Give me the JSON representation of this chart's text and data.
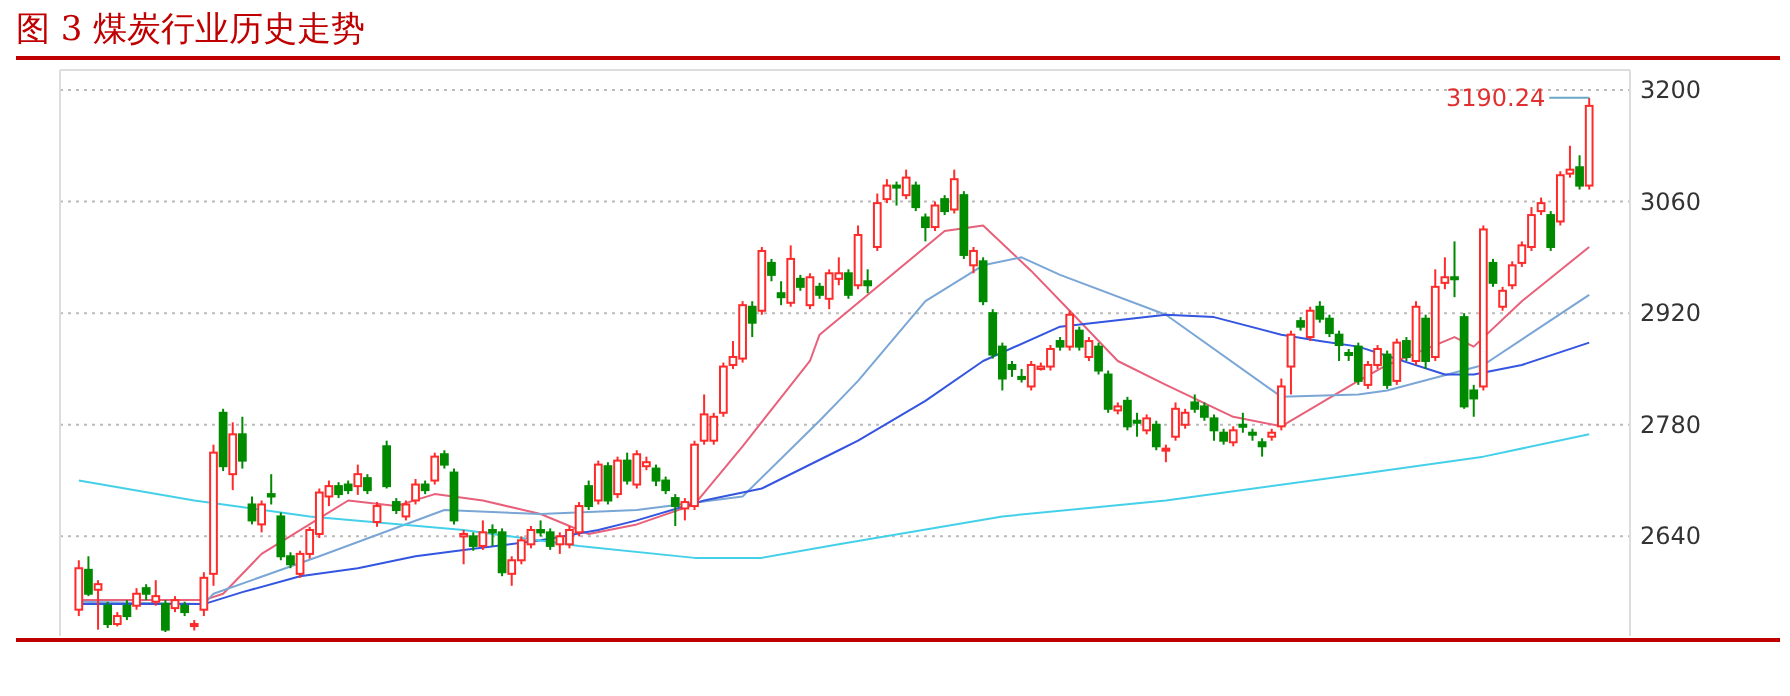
{
  "chart_data": {
    "type": "candlestick",
    "title": "图 3 煤炭行业历史走势",
    "categories": [
      null,
      null,
      null,
      null,
      null,
      null,
      null,
      null,
      null,
      null,
      null,
      null,
      null,
      null,
      null,
      null,
      null,
      null,
      null,
      null,
      null,
      null,
      null,
      null,
      null,
      null,
      null,
      null,
      null,
      null,
      null,
      null,
      null,
      null,
      null,
      null,
      null,
      null,
      null,
      null,
      null,
      null,
      null,
      null,
      null,
      null,
      null,
      null,
      null,
      null,
      null,
      null,
      null,
      null,
      null,
      null,
      null,
      null,
      null,
      null,
      null,
      null,
      null,
      null,
      null,
      null,
      null,
      null,
      null,
      null,
      null,
      null,
      null,
      null,
      null,
      null,
      null,
      null,
      null,
      null,
      null,
      null,
      null,
      null,
      null,
      null,
      null,
      null,
      null,
      null,
      null,
      null,
      null,
      null,
      null,
      null,
      null,
      null,
      null,
      null,
      null,
      null,
      null,
      null,
      null,
      null,
      null,
      null,
      null,
      null,
      null,
      null,
      null,
      null,
      null,
      null,
      null,
      null,
      null,
      null,
      null,
      null,
      null,
      null,
      null,
      null,
      null,
      null,
      null,
      null,
      null,
      null,
      null,
      null,
      null,
      null,
      null,
      null,
      null,
      null,
      null,
      null,
      null,
      null,
      null,
      null,
      null,
      null,
      null,
      null,
      null,
      null,
      null,
      null,
      null,
      null,
      null,
      null
    ],
    "ohlc": [
      [
        2548,
        2610,
        2540,
        2600
      ],
      [
        2598,
        2615,
        2565,
        2568
      ],
      [
        2573,
        2585,
        2523,
        2580
      ],
      [
        2553,
        2558,
        2525,
        2530
      ],
      [
        2530,
        2545,
        2527,
        2540
      ],
      [
        2553,
        2560,
        2535,
        2540
      ],
      [
        2553,
        2575,
        2548,
        2568
      ],
      [
        2575,
        2580,
        2560,
        2568
      ],
      [
        2558,
        2585,
        2553,
        2565
      ],
      [
        2555,
        2560,
        2520,
        2523
      ],
      [
        2550,
        2565,
        2545,
        2560
      ],
      [
        2553,
        2558,
        2540,
        2545
      ],
      [
        2528,
        2535,
        2522,
        2530
      ],
      [
        2548,
        2595,
        2540,
        2588
      ],
      [
        2593,
        2755,
        2578,
        2745
      ],
      [
        2795,
        2800,
        2722,
        2728
      ],
      [
        2718,
        2783,
        2698,
        2768
      ],
      [
        2768,
        2790,
        2725,
        2735
      ],
      [
        2680,
        2690,
        2655,
        2660
      ],
      [
        2655,
        2685,
        2645,
        2680
      ],
      [
        2693,
        2718,
        2680,
        2690
      ],
      [
        2665,
        2670,
        2610,
        2615
      ],
      [
        2615,
        2620,
        2600,
        2605
      ],
      [
        2593,
        2622,
        2588,
        2618
      ],
      [
        2618,
        2652,
        2612,
        2648
      ],
      [
        2643,
        2700,
        2638,
        2695
      ],
      [
        2690,
        2710,
        2678,
        2703
      ],
      [
        2703,
        2708,
        2688,
        2693
      ],
      [
        2705,
        2710,
        2693,
        2698
      ],
      [
        2703,
        2730,
        2692,
        2718
      ],
      [
        2713,
        2718,
        2693,
        2698
      ],
      [
        2658,
        2683,
        2652,
        2678
      ],
      [
        2753,
        2760,
        2700,
        2703
      ],
      [
        2683,
        2688,
        2668,
        2673
      ],
      [
        2665,
        2685,
        2660,
        2680
      ],
      [
        2685,
        2712,
        2680,
        2705
      ],
      [
        2705,
        2710,
        2693,
        2698
      ],
      [
        2710,
        2745,
        2705,
        2740
      ],
      [
        2743,
        2748,
        2725,
        2730
      ],
      [
        2720,
        2725,
        2655,
        2660
      ],
      [
        2640,
        2648,
        2605,
        2643
      ],
      [
        2640,
        2645,
        2622,
        2628
      ],
      [
        2628,
        2660,
        2623,
        2645
      ],
      [
        2648,
        2655,
        2628,
        2645
      ],
      [
        2645,
        2650,
        2590,
        2595
      ],
      [
        2593,
        2615,
        2578,
        2610
      ],
      [
        2610,
        2640,
        2605,
        2635
      ],
      [
        2630,
        2653,
        2625,
        2648
      ],
      [
        2648,
        2660,
        2640,
        2645
      ],
      [
        2645,
        2650,
        2623,
        2628
      ],
      [
        2630,
        2645,
        2618,
        2640
      ],
      [
        2630,
        2653,
        2625,
        2648
      ],
      [
        2645,
        2683,
        2640,
        2678
      ],
      [
        2703,
        2710,
        2673,
        2678
      ],
      [
        2685,
        2735,
        2680,
        2730
      ],
      [
        2728,
        2733,
        2680,
        2685
      ],
      [
        2693,
        2740,
        2688,
        2735
      ],
      [
        2735,
        2745,
        2705,
        2710
      ],
      [
        2705,
        2748,
        2700,
        2743
      ],
      [
        2728,
        2740,
        2723,
        2733
      ],
      [
        2725,
        2730,
        2703,
        2710
      ],
      [
        2710,
        2715,
        2693,
        2698
      ],
      [
        2688,
        2693,
        2653,
        2678
      ],
      [
        2675,
        2688,
        2660,
        2683
      ],
      [
        2678,
        2760,
        2673,
        2755
      ],
      [
        2760,
        2818,
        2755,
        2793
      ],
      [
        2760,
        2795,
        2755,
        2790
      ],
      [
        2795,
        2858,
        2790,
        2853
      ],
      [
        2855,
        2885,
        2850,
        2865
      ],
      [
        2863,
        2935,
        2858,
        2930
      ],
      [
        2928,
        2935,
        2890,
        2908
      ],
      [
        2923,
        3003,
        2918,
        2998
      ],
      [
        2983,
        2988,
        2960,
        2968
      ],
      [
        2945,
        2960,
        2930,
        2940
      ],
      [
        2933,
        3005,
        2928,
        2988
      ],
      [
        2963,
        2968,
        2948,
        2953
      ],
      [
        2930,
        2970,
        2925,
        2965
      ],
      [
        2953,
        2958,
        2938,
        2943
      ],
      [
        2938,
        2975,
        2925,
        2970
      ],
      [
        2963,
        2990,
        2955,
        2970
      ],
      [
        2970,
        2975,
        2938,
        2943
      ],
      [
        2955,
        3030,
        2950,
        3018
      ],
      [
        2960,
        2975,
        2945,
        2955
      ],
      [
        3003,
        3070,
        2998,
        3058
      ],
      [
        3063,
        3088,
        3058,
        3080
      ],
      [
        3080,
        3085,
        3055,
        3078
      ],
      [
        3068,
        3100,
        3063,
        3090
      ],
      [
        3080,
        3085,
        3048,
        3053
      ],
      [
        3040,
        3045,
        3010,
        3028
      ],
      [
        3028,
        3060,
        3023,
        3055
      ],
      [
        3063,
        3068,
        3043,
        3048
      ],
      [
        3050,
        3100,
        3045,
        3088
      ],
      [
        3068,
        3073,
        2988,
        2993
      ],
      [
        2980,
        3003,
        2970,
        2998
      ],
      [
        2985,
        2990,
        2930,
        2935
      ],
      [
        2920,
        2925,
        2863,
        2868
      ],
      [
        2878,
        2883,
        2823,
        2838
      ],
      [
        2855,
        2860,
        2840,
        2850
      ],
      [
        2840,
        2850,
        2833,
        2838
      ],
      [
        2828,
        2860,
        2823,
        2855
      ],
      [
        2850,
        2858,
        2848,
        2853
      ],
      [
        2853,
        2880,
        2848,
        2875
      ],
      [
        2885,
        2890,
        2873,
        2878
      ],
      [
        2878,
        2923,
        2873,
        2918
      ],
      [
        2898,
        2903,
        2873,
        2878
      ],
      [
        2865,
        2890,
        2860,
        2885
      ],
      [
        2878,
        2883,
        2843,
        2848
      ],
      [
        2843,
        2848,
        2795,
        2800
      ],
      [
        2798,
        2808,
        2793,
        2803
      ],
      [
        2810,
        2815,
        2773,
        2778
      ],
      [
        2785,
        2795,
        2765,
        2783
      ],
      [
        2773,
        2793,
        2768,
        2788
      ],
      [
        2780,
        2785,
        2748,
        2753
      ],
      [
        2748,
        2755,
        2733,
        2750
      ],
      [
        2765,
        2808,
        2760,
        2800
      ],
      [
        2780,
        2800,
        2775,
        2795
      ],
      [
        2808,
        2818,
        2795,
        2800
      ],
      [
        2803,
        2808,
        2785,
        2790
      ],
      [
        2788,
        2793,
        2760,
        2773
      ],
      [
        2770,
        2775,
        2755,
        2760
      ],
      [
        2758,
        2778,
        2753,
        2773
      ],
      [
        2780,
        2795,
        2770,
        2778
      ],
      [
        2770,
        2775,
        2760,
        2768
      ],
      [
        2758,
        2763,
        2740,
        2753
      ],
      [
        2765,
        2775,
        2760,
        2770
      ],
      [
        2778,
        2838,
        2773,
        2828
      ],
      [
        2853,
        2898,
        2818,
        2893
      ],
      [
        2910,
        2915,
        2898,
        2903
      ],
      [
        2890,
        2928,
        2885,
        2923
      ],
      [
        2928,
        2935,
        2908,
        2913
      ],
      [
        2913,
        2918,
        2890,
        2895
      ],
      [
        2893,
        2898,
        2860,
        2880
      ],
      [
        2870,
        2875,
        2860,
        2868
      ],
      [
        2878,
        2883,
        2830,
        2835
      ],
      [
        2830,
        2860,
        2825,
        2855
      ],
      [
        2855,
        2880,
        2850,
        2875
      ],
      [
        2868,
        2873,
        2825,
        2830
      ],
      [
        2835,
        2888,
        2830,
        2883
      ],
      [
        2885,
        2890,
        2860,
        2865
      ],
      [
        2860,
        2935,
        2855,
        2928
      ],
      [
        2913,
        2918,
        2850,
        2860
      ],
      [
        2865,
        2975,
        2860,
        2953
      ],
      [
        2958,
        2990,
        2950,
        2965
      ],
      [
        2965,
        3010,
        2940,
        2963
      ],
      [
        2915,
        2920,
        2800,
        2803
      ],
      [
        2823,
        2830,
        2790,
        2813
      ],
      [
        2828,
        3030,
        2823,
        3025
      ],
      [
        2983,
        2988,
        2953,
        2958
      ],
      [
        2928,
        2953,
        2923,
        2948
      ],
      [
        2955,
        2985,
        2950,
        2980
      ],
      [
        2983,
        3010,
        2978,
        3005
      ],
      [
        3003,
        3053,
        2998,
        3043
      ],
      [
        3048,
        3065,
        3043,
        3058
      ],
      [
        3043,
        3048,
        2998,
        3003
      ],
      [
        3035,
        3098,
        3030,
        3093
      ],
      [
        3095,
        3130,
        3090,
        3100
      ],
      [
        3103,
        3118,
        3075,
        3080
      ],
      [
        3080,
        3190.24,
        3075,
        3180
      ]
    ],
    "series": [
      {
        "type": "line",
        "color": "#e8607a",
        "values": [
          2560,
          null,
          null,
          null,
          null,
          null,
          null,
          null,
          2560,
          null,
          null,
          null,
          null,
          2560,
          null,
          2568,
          null,
          null,
          null,
          2618,
          null,
          null,
          null,
          null,
          null,
          null,
          null,
          null,
          2685,
          null,
          null,
          null,
          null,
          2678,
          null,
          null,
          null,
          2693,
          null,
          null,
          null,
          null,
          2685,
          null,
          null,
          null,
          null,
          null,
          2668,
          null,
          null,
          null,
          null,
          2643,
          null,
          null,
          null,
          null,
          2655,
          null,
          null,
          null,
          null,
          null,
          2680,
          null,
          null,
          null,
          null,
          2753,
          null,
          null,
          null,
          null,
          null,
          null,
          2860,
          2893,
          null,
          null,
          null,
          null,
          null,
          null,
          null,
          null,
          null,
          null,
          null,
          null,
          3023,
          null,
          null,
          null,
          3030,
          null,
          null,
          null,
          null,
          2973,
          null,
          null,
          null,
          2923,
          null,
          null,
          null,
          null,
          2860,
          null,
          null,
          null,
          null,
          2830,
          null,
          null,
          null,
          null,
          null,
          null,
          2790,
          null,
          null,
          null,
          null,
          2778,
          null,
          null,
          null,
          null,
          null,
          null,
          null,
          2835,
          null,
          null,
          2855,
          null,
          null,
          null,
          null,
          null,
          null,
          2890,
          null,
          2878,
          null,
          null,
          null,
          null,
          2935,
          null,
          null,
          null,
          null,
          null,
          null,
          3003
        ]
      },
      {
        "type": "line",
        "color": "#7aa6d6",
        "values": [
          2558,
          null,
          null,
          null,
          null,
          null,
          null,
          null,
          null,
          null,
          null,
          null,
          null,
          2555,
          2568,
          null,
          null,
          null,
          null,
          null,
          null,
          null,
          null,
          null,
          null,
          2615,
          null,
          null,
          null,
          null,
          null,
          null,
          null,
          null,
          null,
          null,
          null,
          null,
          2673,
          null,
          null,
          null,
          null,
          null,
          null,
          null,
          null,
          null,
          2668,
          null,
          null,
          null,
          null,
          null,
          null,
          null,
          null,
          null,
          2673,
          null,
          null,
          null,
          null,
          null,
          null,
          null,
          null,
          null,
          null,
          2690,
          null,
          null,
          null,
          null,
          null,
          null,
          null,
          2785,
          null,
          2810,
          null,
          2835,
          null,
          null,
          null,
          null,
          null,
          null,
          2935,
          null,
          null,
          null,
          null,
          null,
          2980,
          null,
          null,
          null,
          2990,
          null,
          null,
          null,
          2968,
          null,
          null,
          null,
          null,
          null,
          null,
          null,
          null,
          null,
          null,
          2918,
          null,
          null,
          null,
          null,
          null,
          null,
          null,
          null,
          null,
          null,
          null,
          2815,
          null,
          null,
          null,
          null,
          null,
          null,
          null,
          2818,
          null,
          null,
          2823,
          null,
          null,
          null,
          null,
          null,
          null,
          null,
          null,
          null,
          2855,
          null,
          null,
          null,
          null,
          null,
          null,
          null,
          null,
          null,
          null,
          2943
        ]
      },
      {
        "type": "line",
        "color": "#3355e0",
        "values": [
          2555,
          null,
          null,
          null,
          null,
          null,
          null,
          null,
          2555,
          null,
          null,
          null,
          null,
          2555,
          null,
          null,
          null,
          2570,
          null,
          null,
          null,
          null,
          null,
          2590,
          null,
          null,
          null,
          null,
          null,
          2600,
          null,
          null,
          null,
          null,
          null,
          2615,
          null,
          null,
          null,
          null,
          2623,
          null,
          null,
          null,
          null,
          null,
          null,
          null,
          2635,
          null,
          null,
          null,
          null,
          null,
          2648,
          null,
          null,
          null,
          2660,
          null,
          null,
          null,
          null,
          null,
          null,
          2685,
          null,
          null,
          null,
          null,
          null,
          2700,
          null,
          null,
          null,
          null,
          null,
          null,
          null,
          2748,
          null,
          2760,
          null,
          null,
          null,
          null,
          null,
          null,
          2810,
          null,
          null,
          null,
          null,
          null,
          2860,
          null,
          null,
          null,
          null,
          null,
          null,
          null,
          2903,
          null,
          null,
          null,
          null,
          null,
          null,
          null,
          null,
          null,
          null,
          2918,
          null,
          null,
          null,
          null,
          2915,
          null,
          null,
          null,
          null,
          null,
          null,
          2893,
          null,
          null,
          null,
          2885,
          null,
          null,
          null,
          2878,
          null,
          null,
          null,
          null,
          null,
          null,
          null,
          null,
          2843,
          null,
          null,
          2843,
          null,
          null,
          null,
          null,
          2855,
          null,
          null,
          null,
          null,
          null,
          null,
          2883
        ]
      },
      {
        "type": "line",
        "color": "#45d0ea",
        "values": [
          2710,
          null,
          null,
          null,
          null,
          null,
          null,
          null,
          null,
          null,
          null,
          null,
          2685,
          null,
          null,
          null,
          null,
          null,
          null,
          null,
          null,
          null,
          null,
          null,
          2665,
          null,
          null,
          null,
          null,
          null,
          null,
          null,
          null,
          null,
          null,
          null,
          null,
          null,
          null,
          null,
          2648,
          null,
          null,
          null,
          null,
          null,
          null,
          null,
          null,
          null,
          null,
          null,
          2628,
          null,
          null,
          null,
          null,
          null,
          null,
          null,
          null,
          null,
          null,
          null,
          2613,
          null,
          null,
          null,
          null,
          null,
          null,
          2613,
          null,
          null,
          null,
          null,
          null,
          null,
          null,
          2630,
          null,
          null,
          null,
          null,
          null,
          null,
          null,
          null,
          null,
          null,
          null,
          null,
          null,
          null,
          null,
          null,
          2665,
          null,
          null,
          null,
          null,
          null,
          null,
          null,
          null,
          null,
          null,
          null,
          null,
          null,
          null,
          null,
          null,
          2685,
          null,
          null,
          null,
          null,
          null,
          null,
          null,
          null,
          null,
          null,
          null,
          null,
          null,
          null,
          null,
          null,
          null,
          null,
          null,
          2718,
          null,
          null,
          null,
          null,
          null,
          null,
          null,
          null,
          null,
          null,
          null,
          null,
          2740,
          null,
          null,
          null,
          null,
          null,
          null,
          null,
          null,
          null,
          null,
          2768
        ]
      }
    ],
    "ylim": [
      2515,
      3225
    ],
    "yticks": [
      2640,
      2780,
      2920,
      3060,
      3200
    ],
    "grid": "y",
    "annotations": [
      "3190.24"
    ]
  }
}
